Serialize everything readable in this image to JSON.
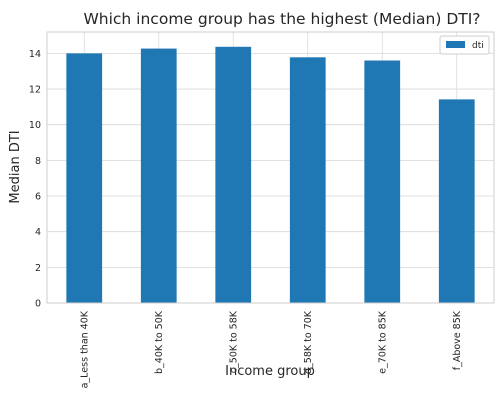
{
  "chart_data": {
    "type": "bar",
    "title": "Which income group has the highest (Median) DTI?",
    "xlabel": "Income group",
    "ylabel": "Median DTI",
    "categories": [
      "a_Less than 40K",
      "b_40K to 50K",
      "c_50K to 58K",
      "d_58K to 70K",
      "e_70K to 85K",
      "f_Above 85K"
    ],
    "series": [
      {
        "name": "dti",
        "values": [
          14.0,
          14.27,
          14.37,
          13.78,
          13.6,
          11.42
        ],
        "color": "#1f77b4"
      }
    ],
    "ylim": [
      0,
      15.2
    ],
    "yticks": [
      0,
      2,
      4,
      6,
      8,
      10,
      12,
      14
    ],
    "grid": true,
    "legend": "top-right"
  }
}
